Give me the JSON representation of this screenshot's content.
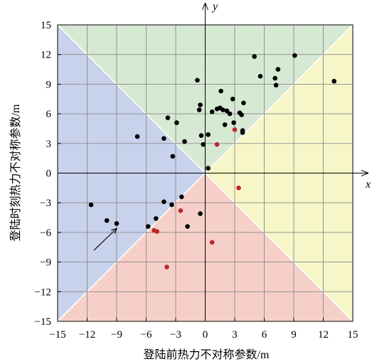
{
  "chart_data": {
    "type": "scatter",
    "xlabel": "登陆前热力不对称参数/m",
    "ylabel": "登陆时刻热力不对称参数/m",
    "x_axis_var": "x",
    "y_axis_var": "y",
    "xlim": [
      -15,
      15
    ],
    "ylim": [
      -15,
      15
    ],
    "ticks": [
      -15,
      -12,
      -9,
      -6,
      -3,
      0,
      3,
      6,
      9,
      12,
      15
    ],
    "tick_labels": [
      "−15",
      "−12",
      "−9",
      "−6",
      "−3",
      "0",
      "3",
      "6",
      "9",
      "12",
      "15"
    ],
    "grid": true,
    "regions": [
      {
        "name": "top",
        "color": "#d6e9d3"
      },
      {
        "name": "right",
        "color": "#f6f6c8"
      },
      {
        "name": "bottom",
        "color": "#f6d0c8"
      },
      {
        "name": "left",
        "color": "#c8d2ec"
      }
    ],
    "series": [
      {
        "color": "#000000",
        "points": [
          [
            5.0,
            11.8
          ],
          [
            9.1,
            11.9
          ],
          [
            7.4,
            10.5
          ],
          [
            5.6,
            9.8
          ],
          [
            7.1,
            9.6
          ],
          [
            7.2,
            8.9
          ],
          [
            13.1,
            9.3
          ],
          [
            -0.8,
            9.4
          ],
          [
            1.6,
            8.3
          ],
          [
            -0.5,
            6.9
          ],
          [
            3.9,
            7.1
          ],
          [
            2.8,
            7.5
          ],
          [
            -0.6,
            6.4
          ],
          [
            0.7,
            6.2
          ],
          [
            1.2,
            6.5
          ],
          [
            1.5,
            6.6
          ],
          [
            1.8,
            6.4
          ],
          [
            2.2,
            6.3
          ],
          [
            2.5,
            6.0
          ],
          [
            3.5,
            6.1
          ],
          [
            3.7,
            5.9
          ],
          [
            -3.8,
            5.6
          ],
          [
            -2.9,
            5.1
          ],
          [
            2.9,
            5.1
          ],
          [
            2.0,
            4.9
          ],
          [
            3.8,
            4.3
          ],
          [
            3.8,
            4.1
          ],
          [
            0.3,
            3.9
          ],
          [
            -0.4,
            3.8
          ],
          [
            -6.9,
            3.7
          ],
          [
            -4.2,
            3.5
          ],
          [
            -2.1,
            3.2
          ],
          [
            -0.2,
            2.9
          ],
          [
            -3.3,
            1.7
          ],
          [
            0.3,
            0.5
          ],
          [
            -11.6,
            -3.2
          ],
          [
            -10.0,
            -4.8
          ],
          [
            -9.0,
            -5.1
          ],
          [
            -2.4,
            -2.4
          ],
          [
            -4.2,
            -2.9
          ],
          [
            -3.4,
            -3.2
          ],
          [
            -0.5,
            -4.1
          ],
          [
            -5.0,
            -4.6
          ],
          [
            -1.8,
            -5.4
          ],
          [
            -5.8,
            -5.4
          ]
        ]
      },
      {
        "color": "#c0272d",
        "points": [
          [
            3.0,
            4.4
          ],
          [
            1.2,
            2.9
          ],
          [
            3.4,
            -1.5
          ],
          [
            -2.5,
            -3.8
          ],
          [
            -5.2,
            -5.8
          ],
          [
            -4.9,
            -5.9
          ],
          [
            0.7,
            -7.0
          ],
          [
            -3.9,
            -9.5
          ]
        ]
      }
    ],
    "annotations": [
      {
        "type": "arrow",
        "from": [
          -11.3,
          -7.8
        ],
        "to": [
          -9.0,
          -5.6
        ]
      }
    ]
  }
}
